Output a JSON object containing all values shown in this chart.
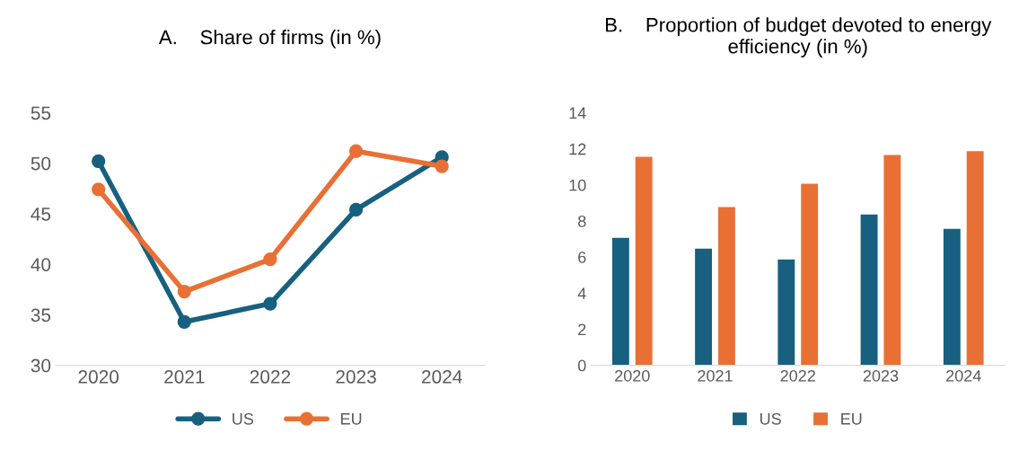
{
  "chart_data": [
    {
      "type": "line",
      "title": "A.    Share of firms (in %)",
      "categories": [
        "2020",
        "2021",
        "2022",
        "2023",
        "2024"
      ],
      "series": [
        {
          "name": "US",
          "color": "#17607f",
          "values": [
            50.2,
            34.3,
            36.1,
            45.4,
            50.6
          ]
        },
        {
          "name": "EU",
          "color": "#e87034",
          "values": [
            47.4,
            37.3,
            40.5,
            51.2,
            49.7
          ]
        }
      ],
      "ylim": [
        30,
        55
      ],
      "yticks": [
        30,
        35,
        40,
        45,
        50,
        55
      ],
      "marker": "circle",
      "line_style": "solid",
      "grid": false,
      "legend": "bottom"
    },
    {
      "type": "bar",
      "title": "B.    Proportion of budget devoted to energy efficiency (in %)",
      "categories": [
        "2020",
        "2021",
        "2022",
        "2023",
        "2024"
      ],
      "series": [
        {
          "name": "US",
          "color": "#17607f",
          "values": [
            7.1,
            6.5,
            5.9,
            8.4,
            7.6
          ]
        },
        {
          "name": "EU",
          "color": "#e87034",
          "values": [
            11.6,
            8.8,
            10.1,
            11.7,
            11.9
          ]
        }
      ],
      "ylim": [
        0,
        14
      ],
      "yticks": [
        0,
        2,
        4,
        6,
        8,
        10,
        12,
        14
      ],
      "grid": false,
      "legend": "bottom"
    }
  ]
}
